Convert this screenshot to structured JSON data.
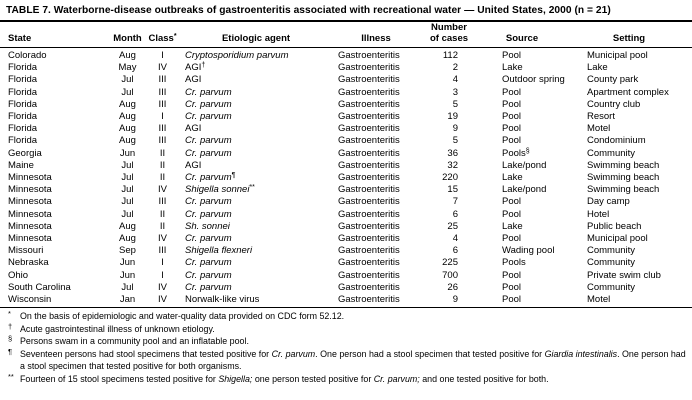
{
  "title": "TABLE 7. Waterborne-disease outbreaks of gastroenteritis associated with recreational water — United States, 2000 (n = 21)",
  "table": {
    "columns": [
      {
        "label": "State",
        "key": "state"
      },
      {
        "label": "Month",
        "key": "month"
      },
      {
        "label": "Class",
        "sup": "*",
        "key": "class"
      },
      {
        "label": "Etiologic agent",
        "key": "agent"
      },
      {
        "label": "Illness",
        "key": "illness"
      },
      {
        "label": "Number",
        "label2": "of cases",
        "key": "cases"
      },
      {
        "label": "Source",
        "key": "source"
      },
      {
        "label": "Setting",
        "key": "setting"
      }
    ],
    "rows": [
      {
        "state": "Colorado",
        "month": "Aug",
        "class": "I",
        "agent": "Cryptosporidium parvum",
        "agent_italic": true,
        "agent_sup": "",
        "illness": "Gastroenteritis",
        "cases": "112",
        "source": "Pool",
        "source_sup": "",
        "setting": "Municipal pool"
      },
      {
        "state": "Florida",
        "month": "May",
        "class": "IV",
        "agent": "AGI",
        "agent_italic": false,
        "agent_sup": "†",
        "illness": "Gastroenteritis",
        "cases": "2",
        "source": "Lake",
        "source_sup": "",
        "setting": "Lake"
      },
      {
        "state": "Florida",
        "month": "Jul",
        "class": "III",
        "agent": "AGI",
        "agent_italic": false,
        "agent_sup": "",
        "illness": "Gastroenteritis",
        "cases": "4",
        "source": "Outdoor spring",
        "source_sup": "",
        "setting": "County park"
      },
      {
        "state": "Florida",
        "month": "Jul",
        "class": "III",
        "agent": "Cr. parvum",
        "agent_italic": true,
        "agent_sup": "",
        "illness": "Gastroenteritis",
        "cases": "3",
        "source": "Pool",
        "source_sup": "",
        "setting": "Apartment complex"
      },
      {
        "state": "Florida",
        "month": "Aug",
        "class": "III",
        "agent": "Cr. parvum",
        "agent_italic": true,
        "agent_sup": "",
        "illness": "Gastroenteritis",
        "cases": "5",
        "source": "Pool",
        "source_sup": "",
        "setting": "Country club"
      },
      {
        "state": "Florida",
        "month": "Aug",
        "class": "I",
        "agent": "Cr. parvum",
        "agent_italic": true,
        "agent_sup": "",
        "illness": "Gastroenteritis",
        "cases": "19",
        "source": "Pool",
        "source_sup": "",
        "setting": "Resort"
      },
      {
        "state": "Florida",
        "month": "Aug",
        "class": "III",
        "agent": "AGI",
        "agent_italic": false,
        "agent_sup": "",
        "illness": "Gastroenteritis",
        "cases": "9",
        "source": "Pool",
        "source_sup": "",
        "setting": "Motel"
      },
      {
        "state": "Florida",
        "month": "Aug",
        "class": "III",
        "agent": "Cr. parvum",
        "agent_italic": true,
        "agent_sup": "",
        "illness": "Gastroenteritis",
        "cases": "5",
        "source": "Pool",
        "source_sup": "",
        "setting": "Condominium"
      },
      {
        "state": "Georgia",
        "month": "Jun",
        "class": "II",
        "agent": "Cr. parvum",
        "agent_italic": true,
        "agent_sup": "",
        "illness": "Gastroenteritis",
        "cases": "36",
        "source": "Pools",
        "source_sup": "§",
        "setting": "Community"
      },
      {
        "state": "Maine",
        "month": "Jul",
        "class": "II",
        "agent": "AGI",
        "agent_italic": false,
        "agent_sup": "",
        "illness": "Gastroenteritis",
        "cases": "32",
        "source": "Lake/pond",
        "source_sup": "",
        "setting": "Swimming beach"
      },
      {
        "state": "Minnesota",
        "month": "Jul",
        "class": "II",
        "agent": "Cr. parvum",
        "agent_italic": true,
        "agent_sup": "¶",
        "illness": "Gastroenteritis",
        "cases": "220",
        "source": "Lake",
        "source_sup": "",
        "setting": "Swimming beach"
      },
      {
        "state": "Minnesota",
        "month": "Jul",
        "class": "IV",
        "agent": "Shigella sonnei",
        "agent_italic": true,
        "agent_sup": "**",
        "illness": "Gastroenteritis",
        "cases": "15",
        "source": "Lake/pond",
        "source_sup": "",
        "setting": "Swimming beach"
      },
      {
        "state": "Minnesota",
        "month": "Jul",
        "class": "III",
        "agent": "Cr. parvum",
        "agent_italic": true,
        "agent_sup": "",
        "illness": "Gastroenteritis",
        "cases": "7",
        "source": "Pool",
        "source_sup": "",
        "setting": "Day camp"
      },
      {
        "state": "Minnesota",
        "month": "Jul",
        "class": "II",
        "agent": "Cr. parvum",
        "agent_italic": true,
        "agent_sup": "",
        "illness": "Gastroenteritis",
        "cases": "6",
        "source": "Pool",
        "source_sup": "",
        "setting": "Hotel"
      },
      {
        "state": "Minnesota",
        "month": "Aug",
        "class": "II",
        "agent": "Sh. sonnei",
        "agent_italic": true,
        "agent_sup": "",
        "illness": "Gastroenteritis",
        "cases": "25",
        "source": "Lake",
        "source_sup": "",
        "setting": "Public beach"
      },
      {
        "state": "Minnesota",
        "month": "Aug",
        "class": "IV",
        "agent": "Cr. parvum",
        "agent_italic": true,
        "agent_sup": "",
        "illness": "Gastroenteritis",
        "cases": "4",
        "source": "Pool",
        "source_sup": "",
        "setting": "Municipal pool"
      },
      {
        "state": "Missouri",
        "month": "Sep",
        "class": "III",
        "agent": "Shigella flexneri",
        "agent_italic": true,
        "agent_sup": "",
        "illness": "Gastroenteritis",
        "cases": "6",
        "source": "Wading pool",
        "source_sup": "",
        "setting": "Community"
      },
      {
        "state": "Nebraska",
        "month": "Jun",
        "class": "I",
        "agent": "Cr. parvum",
        "agent_italic": true,
        "agent_sup": "",
        "illness": "Gastroenteritis",
        "cases": "225",
        "source": "Pools",
        "source_sup": "",
        "setting": "Community"
      },
      {
        "state": "Ohio",
        "month": "Jun",
        "class": "I",
        "agent": "Cr. parvum",
        "agent_italic": true,
        "agent_sup": "",
        "illness": "Gastroenteritis",
        "cases": "700",
        "source": "Pool",
        "source_sup": "",
        "setting": "Private swim club"
      },
      {
        "state": "South Carolina",
        "month": "Jul",
        "class": "IV",
        "agent": "Cr. parvum",
        "agent_italic": true,
        "agent_sup": "",
        "illness": "Gastroenteritis",
        "cases": "26",
        "source": "Pool",
        "source_sup": "",
        "setting": "Community"
      },
      {
        "state": "Wisconsin",
        "month": "Jan",
        "class": "IV",
        "agent": "Norwalk-like virus",
        "agent_italic": false,
        "agent_sup": "",
        "illness": "Gastroenteritis",
        "cases": "9",
        "source": "Pool",
        "source_sup": "",
        "setting": "Motel"
      }
    ]
  },
  "footnotes": [
    {
      "sym": "*",
      "segments": [
        {
          "t": "On the basis of epidemiologic and water-quality data provided on CDC form 52.12."
        }
      ]
    },
    {
      "sym": "†",
      "segments": [
        {
          "t": "Acute gastrointestinal illness of unknown etiology."
        }
      ]
    },
    {
      "sym": "§",
      "segments": [
        {
          "t": "Persons swam in a community pool and an inflatable pool."
        }
      ]
    },
    {
      "sym": "¶",
      "segments": [
        {
          "t": "Seventeen persons had stool specimens that tested positive for "
        },
        {
          "t": "Cr. parvum",
          "i": true
        },
        {
          "t": ". One person had a stool specimen that tested positive for "
        },
        {
          "t": "Giardia intestinalis",
          "i": true
        },
        {
          "t": ". One person had a stool specimen that tested positive for both organisms."
        }
      ]
    },
    {
      "sym": "**",
      "segments": [
        {
          "t": "Fourteen of 15 stool specimens tested positive for "
        },
        {
          "t": "Shigella;",
          "i": true
        },
        {
          "t": " one person tested positive for "
        },
        {
          "t": "Cr. parvum;",
          "i": true
        },
        {
          "t": " and one tested positive for both."
        }
      ]
    }
  ]
}
